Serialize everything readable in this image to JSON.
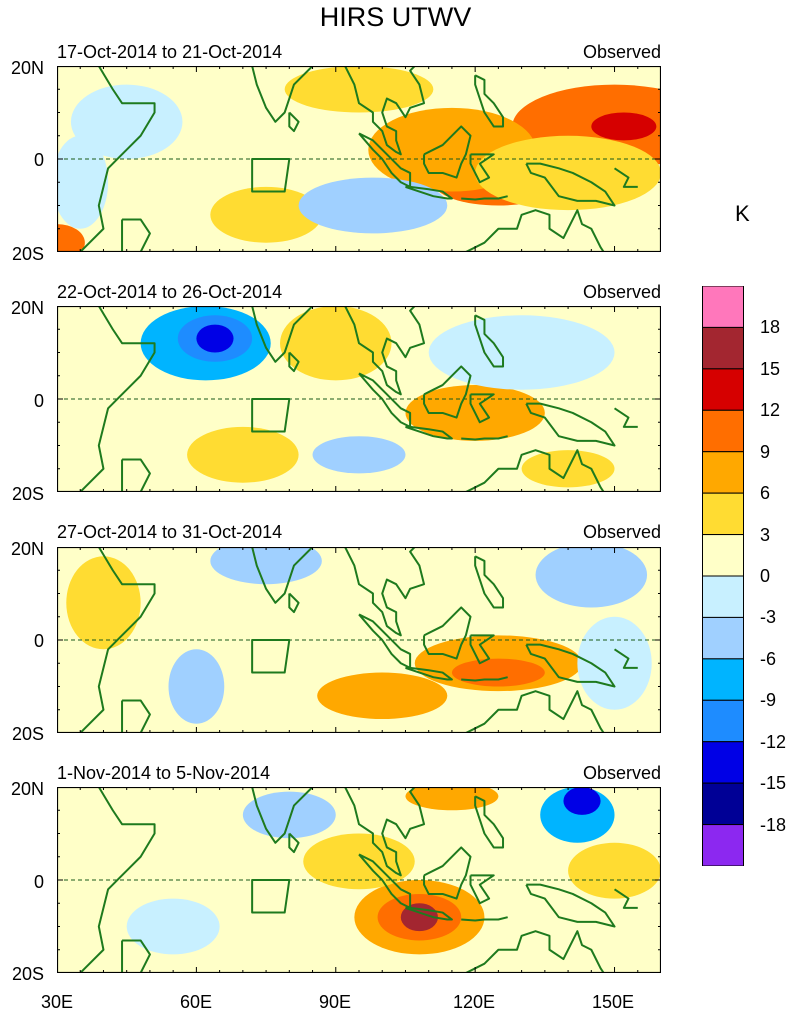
{
  "title": "HIRS UTWV",
  "unit": "K",
  "map": {
    "lat_labels": [
      "20N",
      "0",
      "20S"
    ],
    "lon_labels": [
      "30E",
      "60E",
      "90E",
      "120E",
      "150E"
    ],
    "lon_range": [
      30,
      160
    ],
    "lat_range": [
      -20,
      20
    ]
  },
  "panels": [
    {
      "date": "17-Oct-2014 to 21-Oct-2014",
      "label": "Observed",
      "blobs": [
        {
          "lon": 150,
          "lat": 7,
          "rx": 22,
          "ry": 9,
          "level": "9"
        },
        {
          "lon": 152,
          "lat": 7,
          "rx": 7,
          "ry": 3,
          "level": "12"
        },
        {
          "lon": 125,
          "lat": -5,
          "rx": 14,
          "ry": 5,
          "level": "9"
        },
        {
          "lon": 115,
          "lat": 2,
          "rx": 18,
          "ry": 9,
          "level": "6"
        },
        {
          "lon": 140,
          "lat": -3,
          "rx": 20,
          "ry": 8,
          "level": "3"
        },
        {
          "lon": 95,
          "lat": 15,
          "rx": 16,
          "ry": 5,
          "level": "3"
        },
        {
          "lon": 75,
          "lat": -12,
          "rx": 12,
          "ry": 6,
          "level": "3"
        },
        {
          "lon": 98,
          "lat": -10,
          "rx": 16,
          "ry": 6,
          "level": "-6"
        },
        {
          "lon": 45,
          "lat": 8,
          "rx": 12,
          "ry": 8,
          "level": "-3"
        },
        {
          "lon": 30,
          "lat": -18,
          "rx": 6,
          "ry": 4,
          "level": "9"
        },
        {
          "lon": 35,
          "lat": -5,
          "rx": 6,
          "ry": 10,
          "level": "-3"
        }
      ]
    },
    {
      "date": "22-Oct-2014 to 26-Oct-2014",
      "label": "Observed",
      "blobs": [
        {
          "lon": 62,
          "lat": 12,
          "rx": 14,
          "ry": 8,
          "level": "-9"
        },
        {
          "lon": 64,
          "lat": 13,
          "rx": 8,
          "ry": 5,
          "level": "-12"
        },
        {
          "lon": 64,
          "lat": 13,
          "rx": 4,
          "ry": 3,
          "level": "-15"
        },
        {
          "lon": 120,
          "lat": -3,
          "rx": 15,
          "ry": 6,
          "level": "6"
        },
        {
          "lon": 90,
          "lat": 12,
          "rx": 12,
          "ry": 8,
          "level": "3"
        },
        {
          "lon": 70,
          "lat": -12,
          "rx": 12,
          "ry": 6,
          "level": "3"
        },
        {
          "lon": 95,
          "lat": -12,
          "rx": 10,
          "ry": 4,
          "level": "-6"
        },
        {
          "lon": 140,
          "lat": -15,
          "rx": 10,
          "ry": 4,
          "level": "3"
        },
        {
          "lon": 130,
          "lat": 10,
          "rx": 20,
          "ry": 8,
          "level": "-3"
        }
      ]
    },
    {
      "date": "27-Oct-2014 to 31-Oct-2014",
      "label": "Observed",
      "blobs": [
        {
          "lon": 125,
          "lat": -5,
          "rx": 18,
          "ry": 6,
          "level": "6"
        },
        {
          "lon": 125,
          "lat": -7,
          "rx": 10,
          "ry": 3,
          "level": "9"
        },
        {
          "lon": 100,
          "lat": -12,
          "rx": 14,
          "ry": 5,
          "level": "6"
        },
        {
          "lon": 145,
          "lat": 14,
          "rx": 12,
          "ry": 7,
          "level": "-6"
        },
        {
          "lon": 75,
          "lat": 17,
          "rx": 12,
          "ry": 5,
          "level": "-6"
        },
        {
          "lon": 60,
          "lat": -10,
          "rx": 6,
          "ry": 8,
          "level": "-6"
        },
        {
          "lon": 40,
          "lat": 8,
          "rx": 8,
          "ry": 10,
          "level": "3"
        },
        {
          "lon": 150,
          "lat": -5,
          "rx": 8,
          "ry": 10,
          "level": "-3"
        }
      ]
    },
    {
      "date": "1-Nov-2014 to 5-Nov-2014",
      "label": "Observed",
      "blobs": [
        {
          "lon": 108,
          "lat": -8,
          "rx": 14,
          "ry": 8,
          "level": "6"
        },
        {
          "lon": 108,
          "lat": -8,
          "rx": 9,
          "ry": 5,
          "level": "9"
        },
        {
          "lon": 108,
          "lat": -8,
          "rx": 4,
          "ry": 3,
          "level": "15"
        },
        {
          "lon": 142,
          "lat": 14,
          "rx": 8,
          "ry": 6,
          "level": "-9"
        },
        {
          "lon": 143,
          "lat": 17,
          "rx": 4,
          "ry": 3,
          "level": "-15"
        },
        {
          "lon": 80,
          "lat": 14,
          "rx": 10,
          "ry": 5,
          "level": "-6"
        },
        {
          "lon": 115,
          "lat": 18,
          "rx": 10,
          "ry": 3,
          "level": "6"
        },
        {
          "lon": 150,
          "lat": 2,
          "rx": 10,
          "ry": 6,
          "level": "3"
        },
        {
          "lon": 95,
          "lat": 4,
          "rx": 12,
          "ry": 6,
          "level": "3"
        },
        {
          "lon": 55,
          "lat": -10,
          "rx": 10,
          "ry": 6,
          "level": "-3"
        }
      ]
    }
  ],
  "colorbar": {
    "labels": [
      "18",
      "15",
      "12",
      "9",
      "6",
      "3",
      "0",
      "-3",
      "-6",
      "-9",
      "-12",
      "-15",
      "-18"
    ],
    "colors": [
      "#ff77bb",
      "#a32630",
      "#d60000",
      "#ff6e00",
      "#ffa800",
      "#ffdc32",
      "#ffffc8",
      "#c8f0ff",
      "#a0d0ff",
      "#00b4ff",
      "#1e8cff",
      "#0000e6",
      "#000096",
      "#8c28f0"
    ]
  },
  "level_colors": {
    "18": "#ff77bb",
    "15": "#a32630",
    "12": "#d60000",
    "9": "#ff6e00",
    "6": "#ffa800",
    "3": "#ffdc32",
    "0": "#ffffc8",
    "-3": "#c8f0ff",
    "-6": "#a0d0ff",
    "-9": "#00b4ff",
    "-12": "#1e8cff",
    "-15": "#0000e6",
    "-18": "#000096"
  },
  "coast_color": "#1e7a1e"
}
